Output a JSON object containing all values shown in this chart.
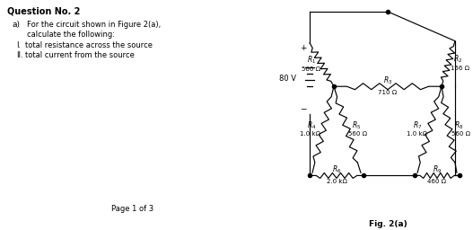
{
  "title": "Question No. 2",
  "bg_color": "#ffffff",
  "text_color": "#000000",
  "fig_label": "Fig. 2(a)",
  "page_label": "Page 1 of 3",
  "source_voltage": "80 V",
  "resistors": {
    "R1": "560 Ω",
    "R2": "156 Ω",
    "R3": "710 Ω",
    "R4": "1.0 kΩ",
    "R5": "560 Ω",
    "R6": "2.0 kΩ",
    "R7": "1.0 kΩ",
    "R8": "560 Ω",
    "R9": "460 Ω"
  }
}
